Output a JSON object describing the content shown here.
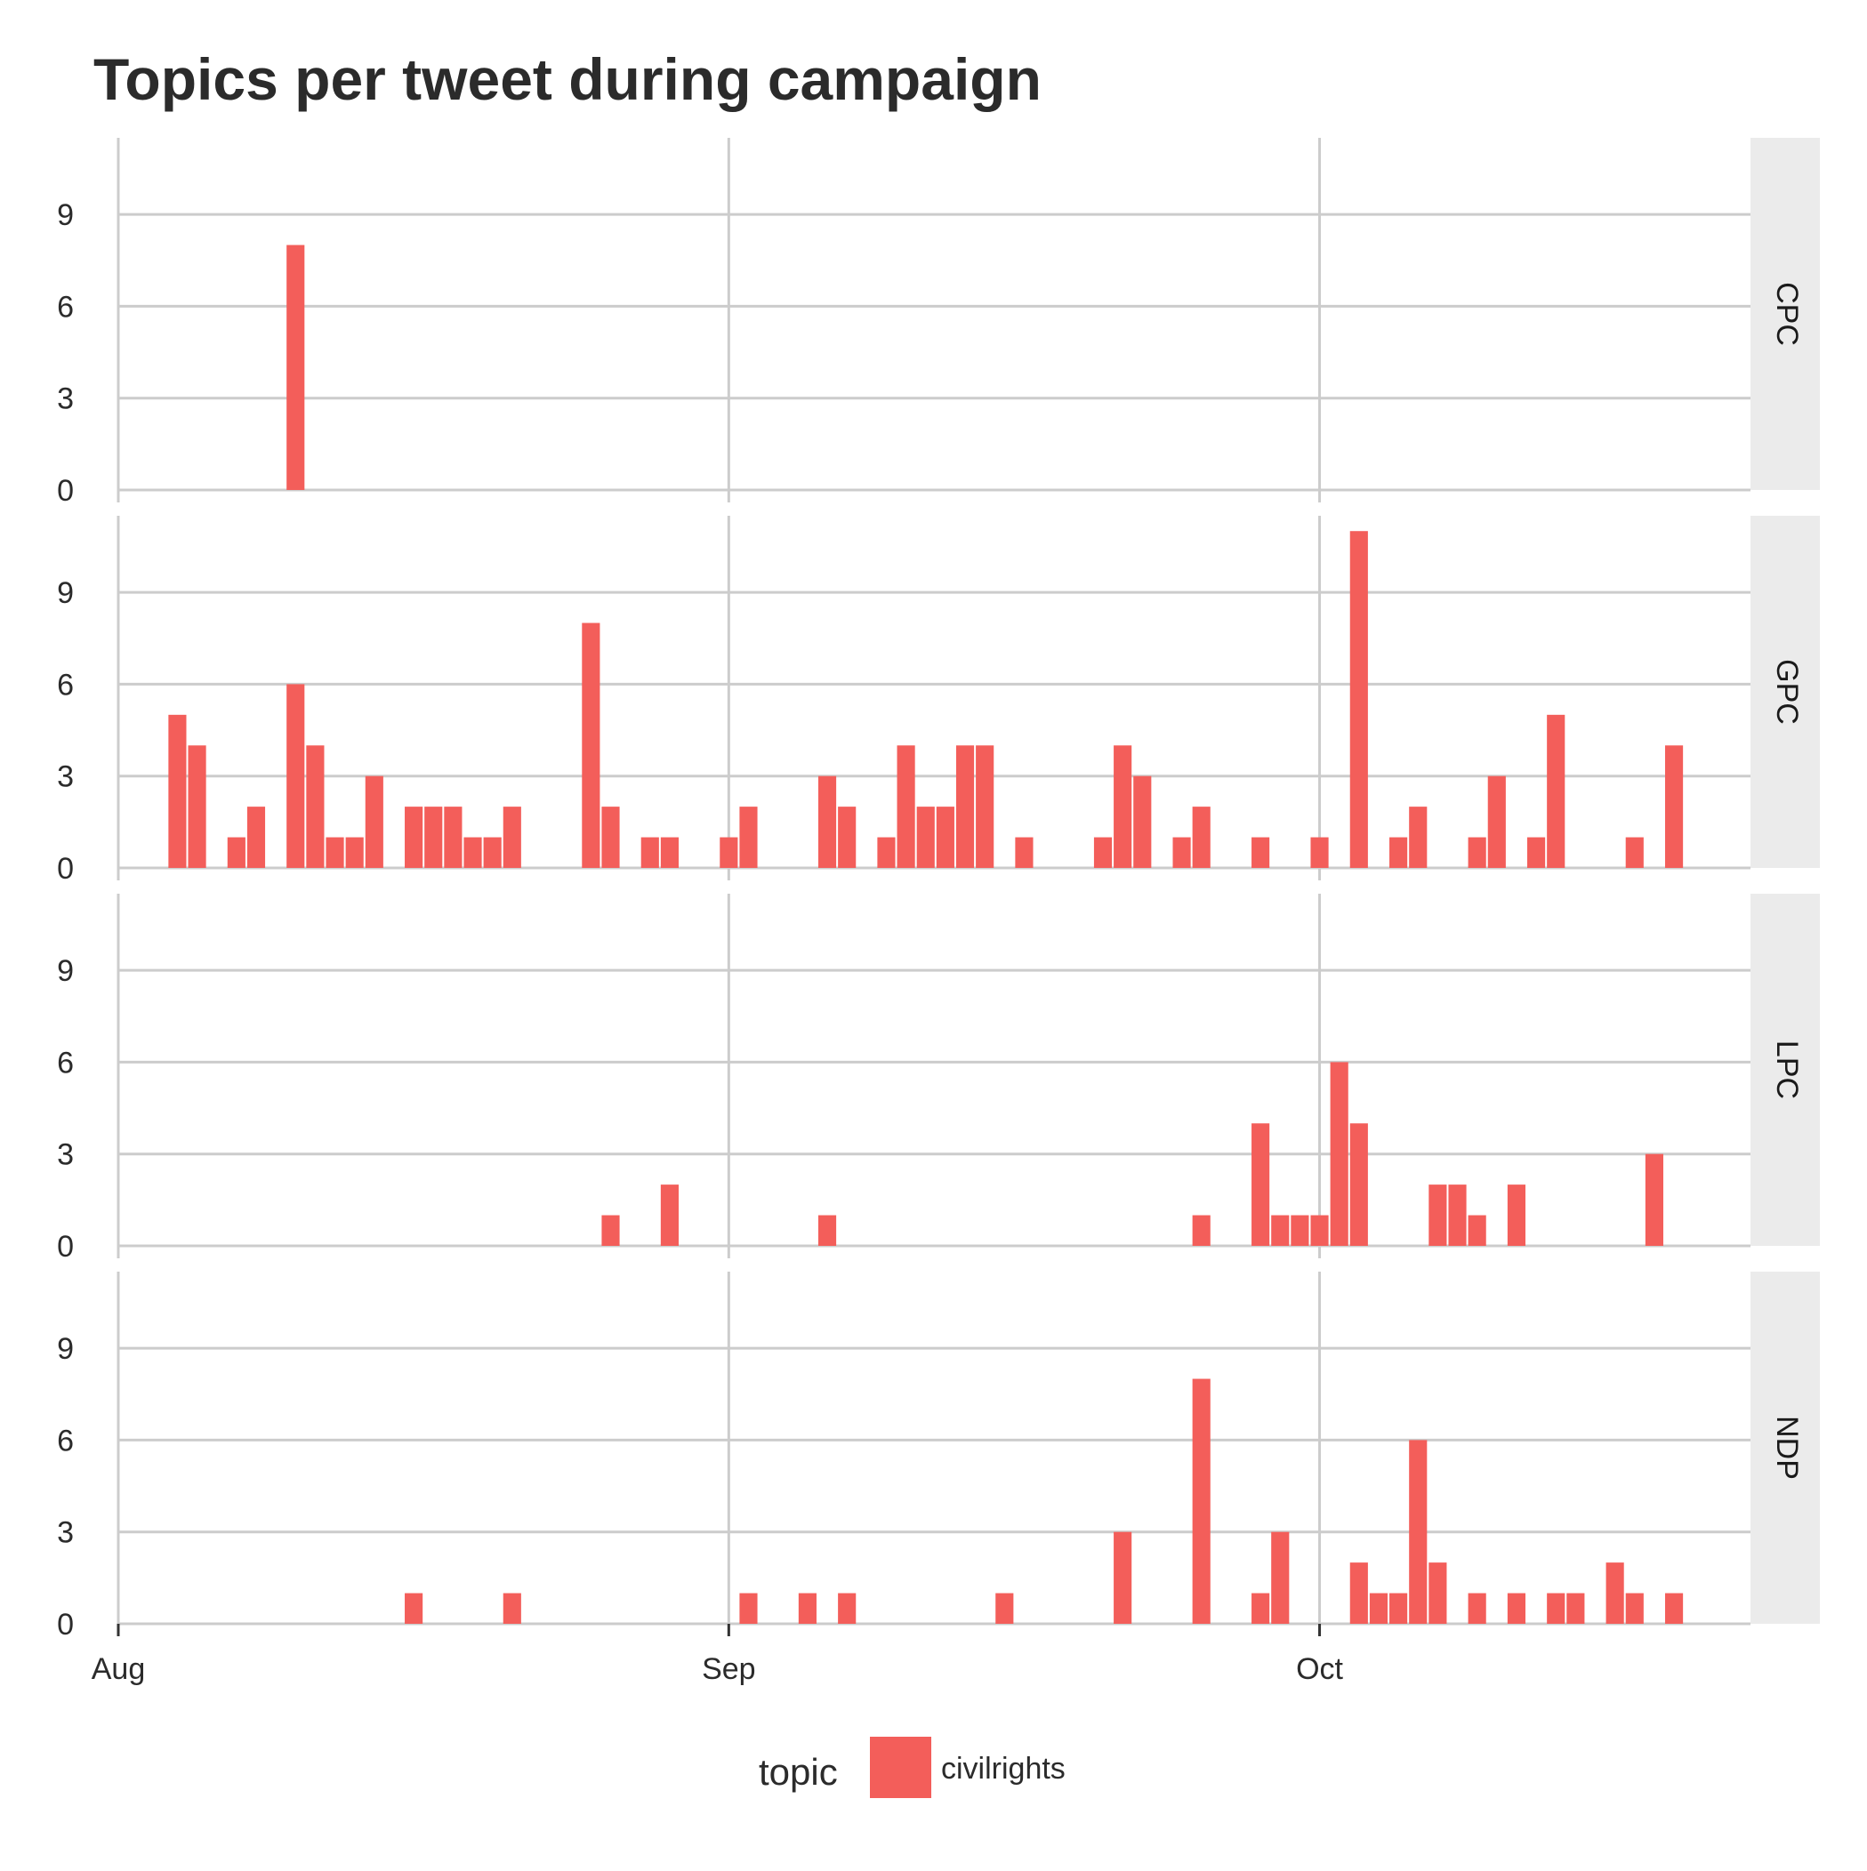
{
  "chart_data": {
    "type": "bar",
    "title": "Topics per tweet during campaign",
    "xlabel": "",
    "ylabel": "",
    "x_range": [
      "2015-08-01",
      "2015-10-23"
    ],
    "x_ticks": [
      {
        "date": "2015-08-01",
        "label": "Aug"
      },
      {
        "date": "2015-09-01",
        "label": "Sep"
      },
      {
        "date": "2015-10-01",
        "label": "Oct"
      }
    ],
    "ylim": [
      0,
      11.5
    ],
    "y_ticks": [
      0,
      3,
      6,
      9
    ],
    "grid": true,
    "legend": {
      "title": "topic",
      "placement": "bottom",
      "entries": [
        {
          "label": "civilrights",
          "color": "#f35e5a"
        }
      ]
    },
    "bar_color": "#f35e5a",
    "panels": [
      {
        "label": "CPC",
        "points": [
          [
            "2015-08-10",
            8
          ]
        ]
      },
      {
        "label": "GPC",
        "points": [
          [
            "2015-08-04",
            5
          ],
          [
            "2015-08-05",
            4
          ],
          [
            "2015-08-07",
            1
          ],
          [
            "2015-08-08",
            2
          ],
          [
            "2015-08-10",
            6
          ],
          [
            "2015-08-11",
            4
          ],
          [
            "2015-08-12",
            1
          ],
          [
            "2015-08-13",
            1
          ],
          [
            "2015-08-14",
            3
          ],
          [
            "2015-08-16",
            2
          ],
          [
            "2015-08-17",
            2
          ],
          [
            "2015-08-18",
            2
          ],
          [
            "2015-08-19",
            1
          ],
          [
            "2015-08-20",
            1
          ],
          [
            "2015-08-21",
            2
          ],
          [
            "2015-08-25",
            8
          ],
          [
            "2015-08-26",
            2
          ],
          [
            "2015-08-28",
            1
          ],
          [
            "2015-08-29",
            1
          ],
          [
            "2015-09-01",
            1
          ],
          [
            "2015-09-02",
            2
          ],
          [
            "2015-09-06",
            3
          ],
          [
            "2015-09-07",
            2
          ],
          [
            "2015-09-09",
            1
          ],
          [
            "2015-09-10",
            4
          ],
          [
            "2015-09-11",
            2
          ],
          [
            "2015-09-12",
            2
          ],
          [
            "2015-09-13",
            4
          ],
          [
            "2015-09-14",
            4
          ],
          [
            "2015-09-16",
            1
          ],
          [
            "2015-09-20",
            1
          ],
          [
            "2015-09-21",
            4
          ],
          [
            "2015-09-22",
            3
          ],
          [
            "2015-09-24",
            1
          ],
          [
            "2015-09-25",
            2
          ],
          [
            "2015-09-28",
            1
          ],
          [
            "2015-10-01",
            1
          ],
          [
            "2015-10-03",
            11
          ],
          [
            "2015-10-05",
            1
          ],
          [
            "2015-10-06",
            2
          ],
          [
            "2015-10-09",
            1
          ],
          [
            "2015-10-10",
            3
          ],
          [
            "2015-10-12",
            1
          ],
          [
            "2015-10-13",
            5
          ],
          [
            "2015-10-17",
            1
          ],
          [
            "2015-10-19",
            4
          ]
        ]
      },
      {
        "label": "LPC",
        "points": [
          [
            "2015-08-26",
            1
          ],
          [
            "2015-08-29",
            2
          ],
          [
            "2015-09-06",
            1
          ],
          [
            "2015-09-25",
            1
          ],
          [
            "2015-09-28",
            4
          ],
          [
            "2015-09-29",
            1
          ],
          [
            "2015-09-30",
            1
          ],
          [
            "2015-10-01",
            1
          ],
          [
            "2015-10-02",
            6
          ],
          [
            "2015-10-03",
            4
          ],
          [
            "2015-10-07",
            2
          ],
          [
            "2015-10-08",
            2
          ],
          [
            "2015-10-09",
            1
          ],
          [
            "2015-10-11",
            2
          ],
          [
            "2015-10-18",
            3
          ]
        ]
      },
      {
        "label": "NDP",
        "points": [
          [
            "2015-08-16",
            1
          ],
          [
            "2015-08-21",
            1
          ],
          [
            "2015-09-02",
            1
          ],
          [
            "2015-09-05",
            1
          ],
          [
            "2015-09-07",
            1
          ],
          [
            "2015-09-15",
            1
          ],
          [
            "2015-09-21",
            3
          ],
          [
            "2015-09-25",
            8
          ],
          [
            "2015-09-28",
            1
          ],
          [
            "2015-09-29",
            3
          ],
          [
            "2015-10-03",
            2
          ],
          [
            "2015-10-04",
            1
          ],
          [
            "2015-10-05",
            1
          ],
          [
            "2015-10-06",
            6
          ],
          [
            "2015-10-07",
            2
          ],
          [
            "2015-10-09",
            1
          ],
          [
            "2015-10-11",
            1
          ],
          [
            "2015-10-13",
            1
          ],
          [
            "2015-10-14",
            1
          ],
          [
            "2015-10-16",
            2
          ],
          [
            "2015-10-17",
            1
          ],
          [
            "2015-10-19",
            1
          ]
        ]
      }
    ]
  }
}
